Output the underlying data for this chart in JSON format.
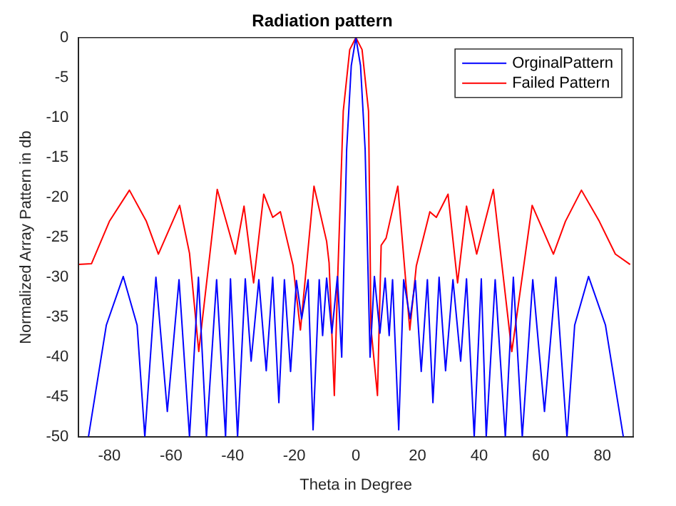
{
  "chart_data": {
    "type": "line",
    "title": "Radiation pattern",
    "xlabel": "Theta in Degree",
    "ylabel": "Normalized Array Pattern in db",
    "xlim": [
      -90,
      90
    ],
    "xticks": [
      -80,
      -60,
      -40,
      -20,
      0,
      20,
      40,
      60,
      80
    ],
    "ylim": [
      -50,
      0
    ],
    "yticks": [
      -50,
      -45,
      -40,
      -35,
      -30,
      -25,
      -20,
      -15,
      -10,
      -5,
      0
    ],
    "grid": false,
    "legend": "top right",
    "marker": "none",
    "line_style": "solid",
    "series": [
      {
        "name": "OrginalPattern",
        "color": "#0000ff",
        "x": [
          -86.8,
          -81,
          -75.5,
          -71,
          -68.5,
          -64.9,
          -61.2,
          -57.4,
          -54,
          -51.1,
          -48.5,
          -45.2,
          -42.3,
          -40.7,
          -38.4,
          -35.9,
          -34,
          -31.5,
          -29.1,
          -27,
          -25,
          -23.2,
          -21.2,
          -19.3,
          -17.6,
          -15.5,
          -13.9,
          -11.9,
          -10.8,
          -9.5,
          -7.8,
          -6,
          -4.6,
          -3,
          -1.5,
          0,
          1.5,
          3,
          4.6,
          6,
          7.8,
          9.5,
          10.8,
          11.9,
          13.9,
          15.5,
          17.6,
          19.3,
          21.2,
          23.2,
          25,
          27,
          29.1,
          31.5,
          34,
          35.9,
          38.4,
          40.7,
          42.3,
          45.2,
          48.5,
          51.1,
          54,
          57.4,
          61.2,
          64.9,
          68.5,
          71,
          75.5,
          81,
          86.8
        ],
        "values": [
          -50,
          -36,
          -29.9,
          -36,
          -50,
          -30,
          -46.8,
          -30.3,
          -50,
          -30,
          -50,
          -30.3,
          -50,
          -30.2,
          -50,
          -30.2,
          -40.5,
          -30.3,
          -41.7,
          -30,
          -45.7,
          -30.3,
          -41.8,
          -30.4,
          -35.2,
          -30.3,
          -49.1,
          -30.3,
          -37.3,
          -30.1,
          -37,
          -29.9,
          -40,
          -14,
          -3.5,
          0,
          -3.5,
          -14,
          -40,
          -29.9,
          -37,
          -30.1,
          -37.3,
          -30.3,
          -49.1,
          -30.3,
          -35.2,
          -30.4,
          -41.8,
          -30.3,
          -45.7,
          -30,
          -41.7,
          -30.3,
          -40.5,
          -30.2,
          -50,
          -30.2,
          -50,
          -30.3,
          -50,
          -30,
          -50,
          -30.3,
          -46.8,
          -30,
          -50,
          -36,
          -29.9,
          -36,
          -50
        ]
      },
      {
        "name": "Failed Pattern",
        "color": "#ff0000",
        "x": [
          -90,
          -85.8,
          -80,
          -73.5,
          -68,
          -64.1,
          -57.2,
          -54,
          -51,
          -45,
          -39.1,
          -36.3,
          -33.2,
          -29.9,
          -27,
          -24.5,
          -20.4,
          -18,
          -13.6,
          -9.5,
          -8.7,
          -7,
          -5.9,
          -4.1,
          -2,
          0,
          2,
          4.1,
          4.9,
          7,
          8.2,
          9.8,
          13.6,
          17.5,
          19.6,
          24,
          26.1,
          29.9,
          33,
          35.9,
          39.2,
          44.6,
          50.6,
          57.2,
          64.1,
          68,
          73.2,
          79,
          84.2,
          89
        ],
        "values": [
          -28.4,
          -28.3,
          -23,
          -19.1,
          -23,
          -27.1,
          -21,
          -27,
          -39.3,
          -19,
          -27.1,
          -21.1,
          -30.7,
          -19.6,
          -22.5,
          -21.8,
          -28.5,
          -36.6,
          -18.6,
          -25.5,
          -28.2,
          -44.8,
          -30,
          -9.2,
          -1.5,
          0,
          -1.5,
          -9.2,
          -36.4,
          -44.8,
          -26,
          -25.1,
          -18.6,
          -36.6,
          -28.6,
          -21.8,
          -22.5,
          -19.6,
          -30.7,
          -21.1,
          -27.1,
          -19,
          -39.3,
          -21,
          -27.1,
          -23,
          -19.1,
          -23,
          -27.1,
          -28.4
        ]
      }
    ]
  }
}
